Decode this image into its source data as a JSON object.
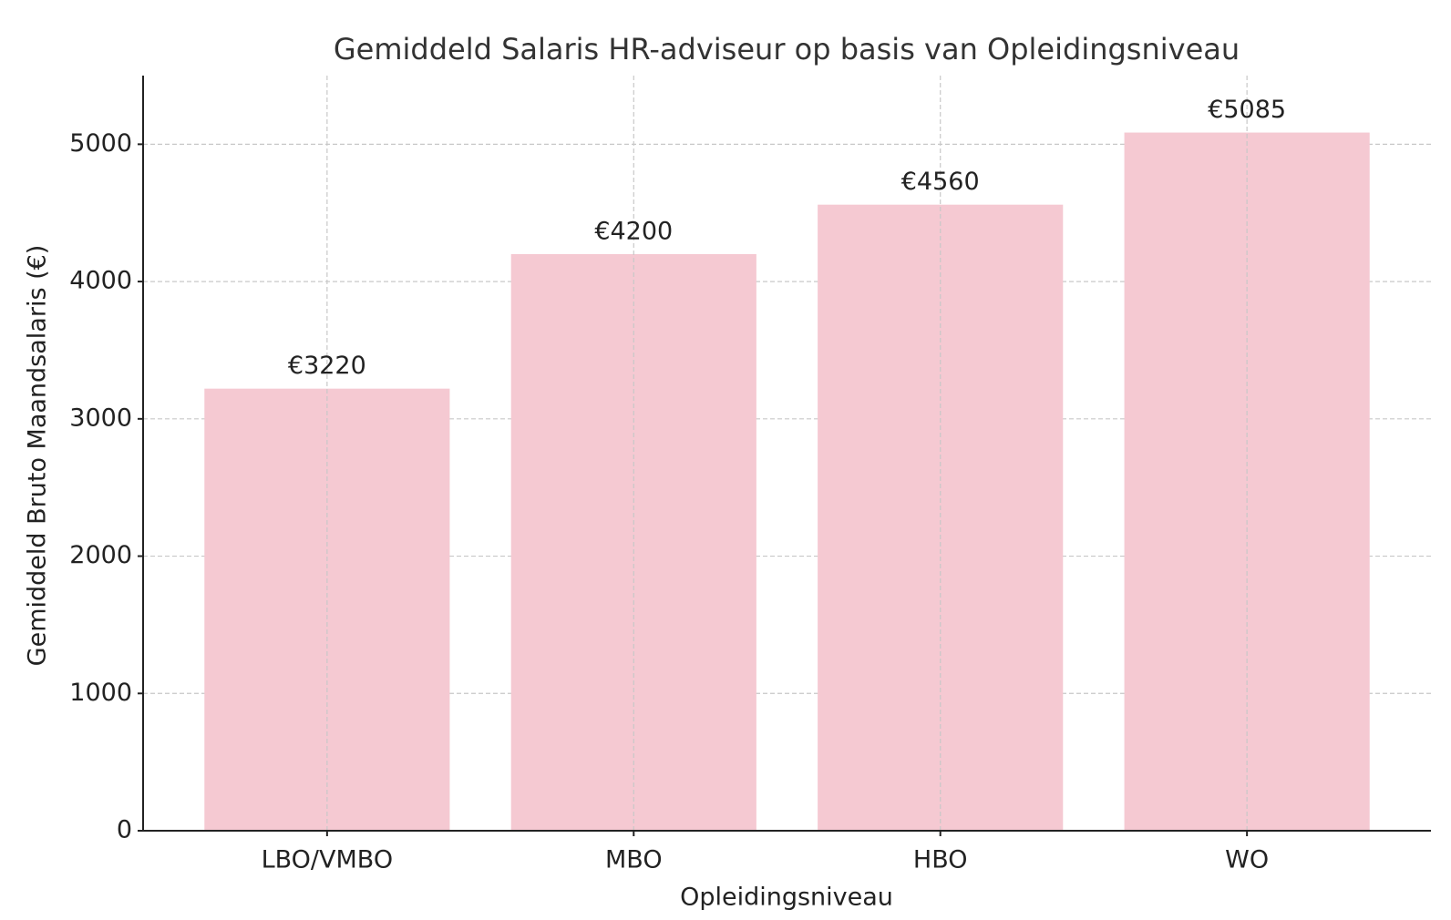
{
  "chart_data": {
    "type": "bar",
    "title": "Gemiddeld Salaris HR-adviseur op basis van Opleidingsniveau",
    "x_label": "Opleidingsniveau",
    "y_label": "Gemiddeld Bruto Maandsalaris (€)",
    "categories": [
      "LBO/VMBO",
      "MBO",
      "HBO",
      "WO"
    ],
    "values": [
      3220,
      4200,
      4560,
      5085
    ],
    "value_labels": [
      "€3220",
      "€4200",
      "€4560",
      "€5085"
    ],
    "color": "#f5c9d2",
    "ylim": [
      0,
      5500
    ],
    "yticks": [
      0,
      1000,
      2000,
      3000,
      4000,
      5000
    ],
    "grid": true
  }
}
